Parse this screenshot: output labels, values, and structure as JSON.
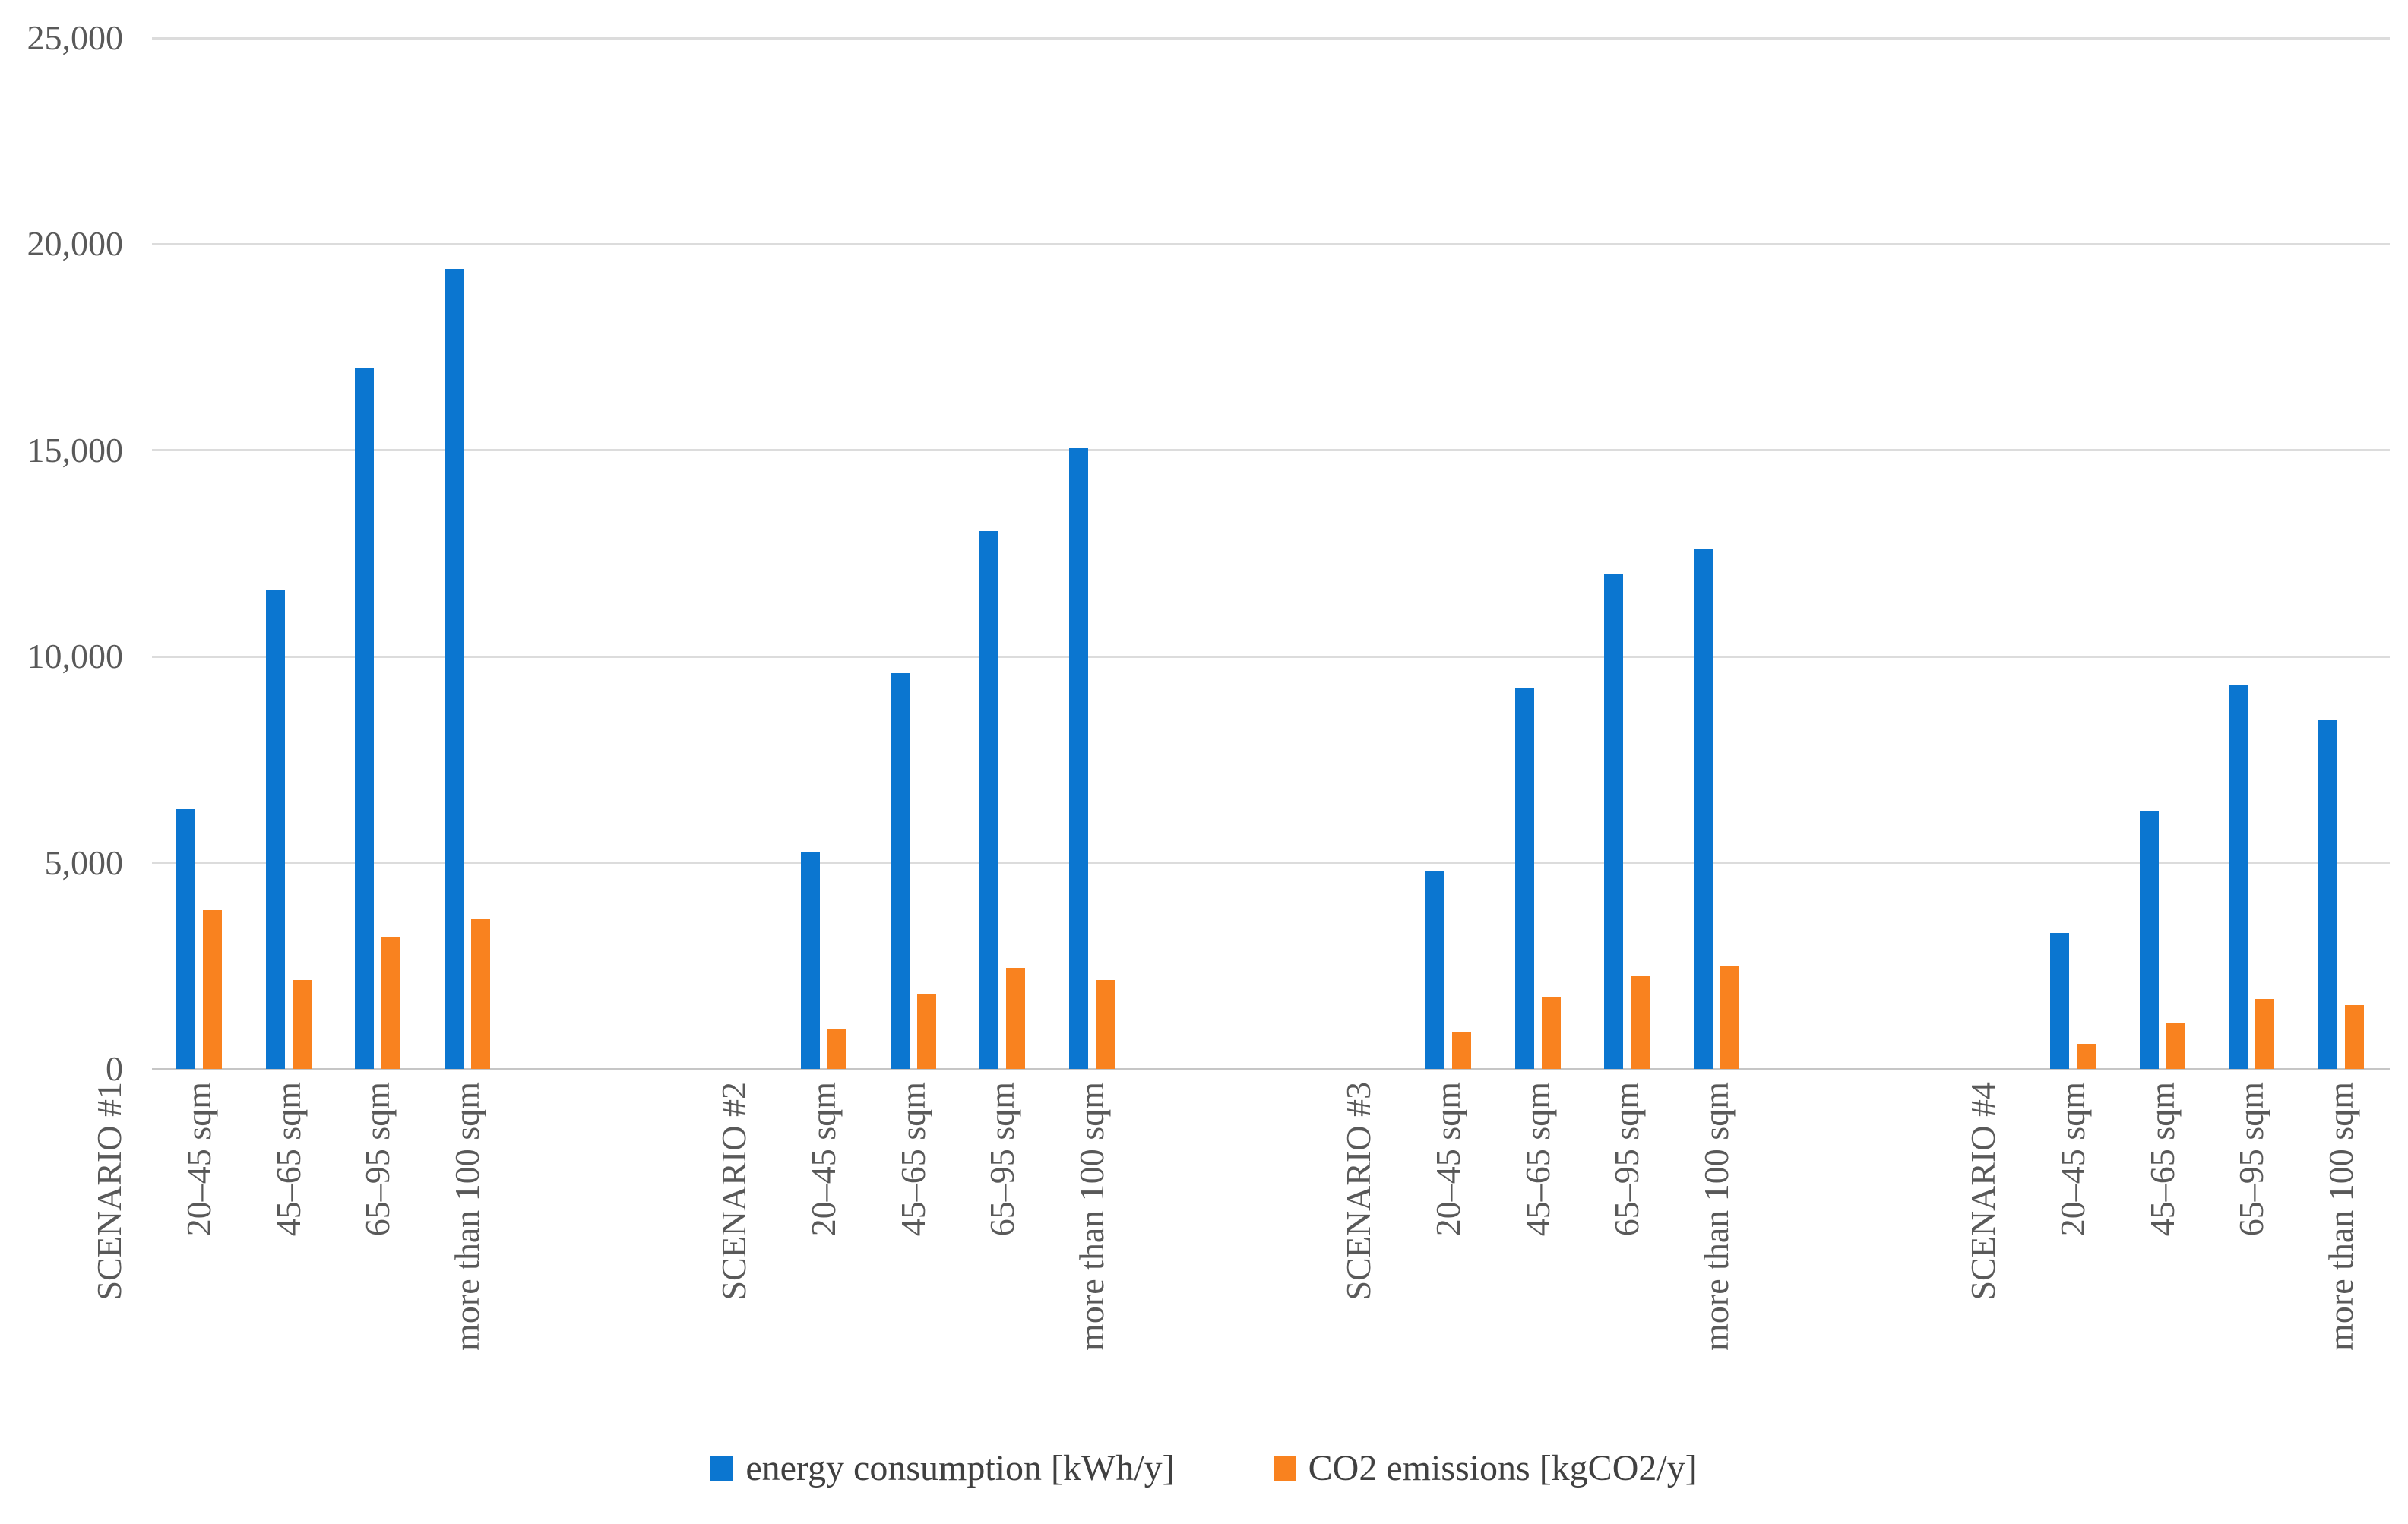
{
  "chart_data": {
    "type": "bar",
    "title": "",
    "xlabel": "",
    "ylabel": "",
    "ylim": [
      0,
      25000
    ],
    "yticks": [
      0,
      5000,
      10000,
      15000,
      20000,
      25000
    ],
    "ytick_labels": [
      "0",
      "5,000",
      "10,000",
      "15,000",
      "20,000",
      "25,000"
    ],
    "grid": true,
    "legend_position": "bottom",
    "categories": [
      "20–45 sqm",
      "45–65 sqm",
      "65–95 sqm",
      "more than 100 sqm"
    ],
    "series": [
      {
        "name": "energy consumption [kWh/y]",
        "key": "energy",
        "color": "#0b76d0"
      },
      {
        "name": "CO2 emissions [kgCO2/y]",
        "key": "co2",
        "color": "#f9821f"
      }
    ],
    "groups": [
      {
        "scenario": "SCENARIO #1",
        "energy": [
          6300,
          11600,
          17000,
          19400
        ],
        "co2": [
          3850,
          2150,
          3200,
          3650
        ]
      },
      {
        "scenario": "SCENARIO #2",
        "energy": [
          5250,
          9600,
          13050,
          15050
        ],
        "co2": [
          950,
          1800,
          2450,
          2150
        ]
      },
      {
        "scenario": "SCENARIO #3",
        "energy": [
          4800,
          9250,
          12000,
          12600
        ],
        "co2": [
          900,
          1750,
          2250,
          2500
        ]
      },
      {
        "scenario": "SCENARIO #4",
        "energy": [
          3300,
          6250,
          9300,
          8450
        ],
        "co2": [
          600,
          1100,
          1700,
          1550
        ]
      }
    ]
  },
  "colors": {
    "energy_bar": "#0b76d0",
    "co2_bar": "#f9821f",
    "gridline": "#dcdcdc",
    "axis_line": "#c6c6c6",
    "axis_text": "#595959",
    "legend_text": "#404040",
    "background": "#ffffff"
  }
}
